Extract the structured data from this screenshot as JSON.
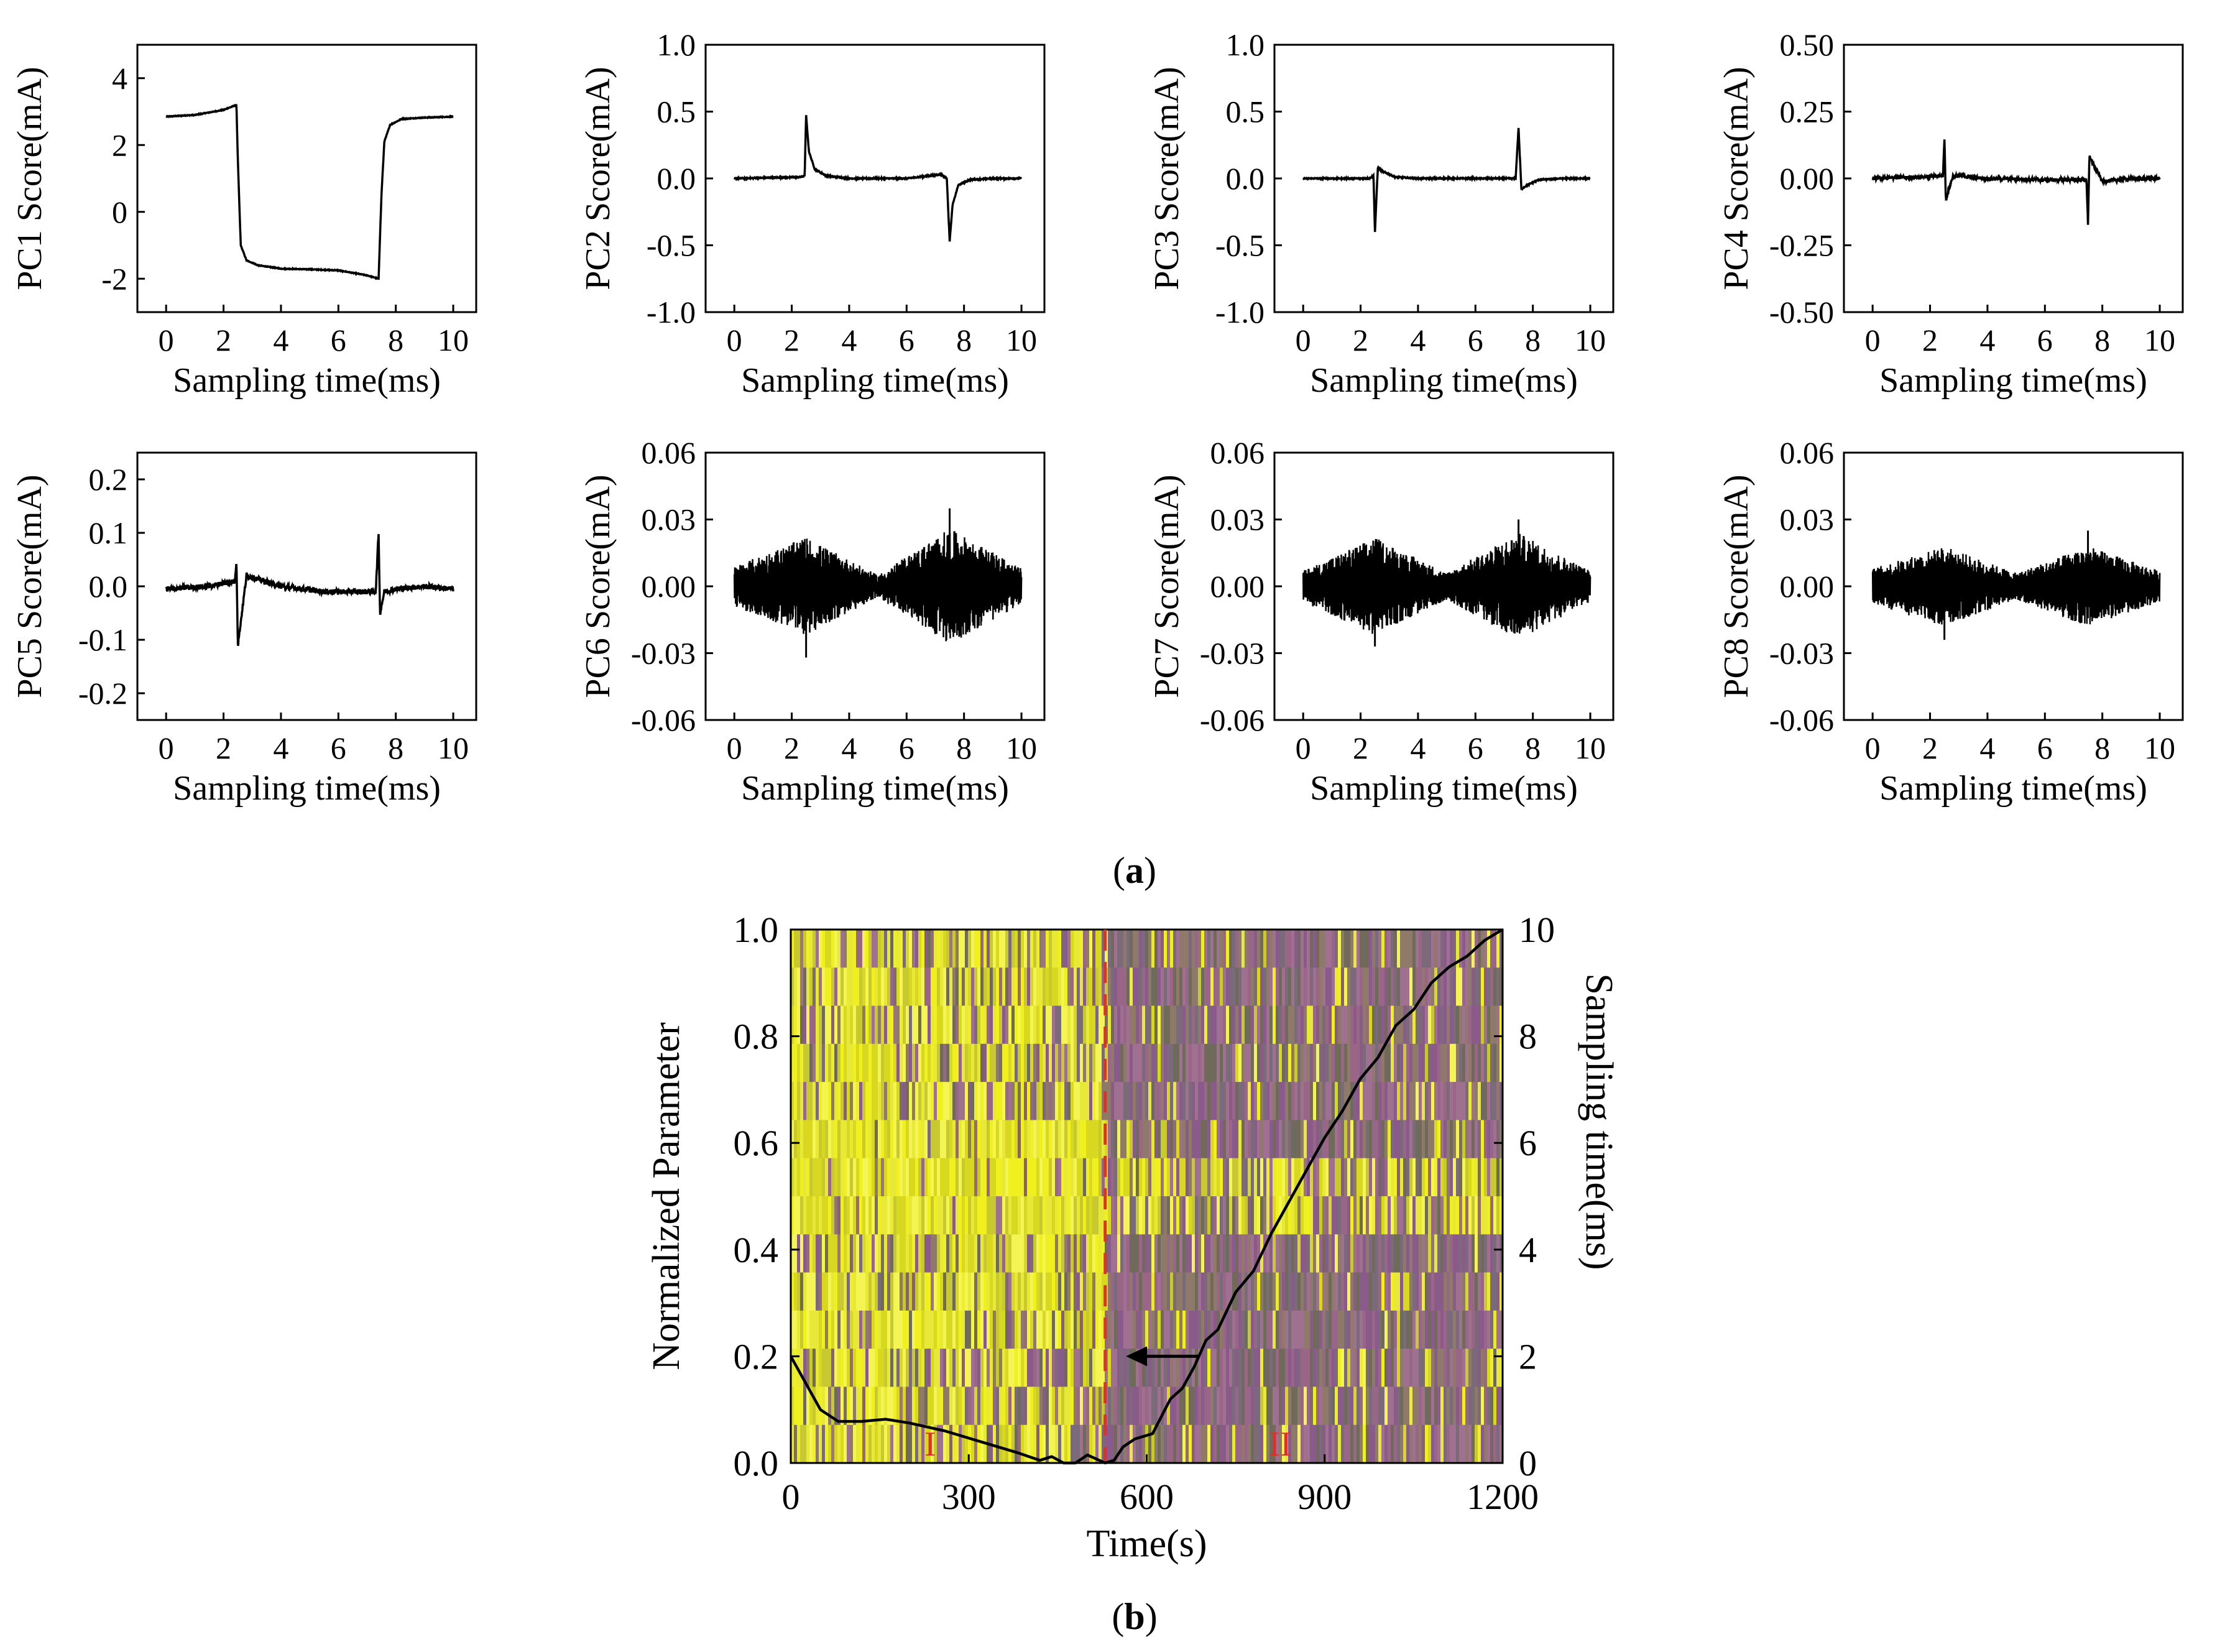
{
  "figure": {
    "label_a": "(a)",
    "label_b": "(b)",
    "label_a_letter": "a",
    "label_b_letter": "b"
  },
  "chart_data": [
    {
      "id": "PC1",
      "type": "line",
      "title": "",
      "xlabel": "Sampling time(ms)",
      "ylabel": "PC1 Score(mA)",
      "xlim": [
        -1,
        10.8
      ],
      "ylim": [
        -3,
        5
      ],
      "xticks": [
        0,
        2,
        4,
        6,
        8,
        10
      ],
      "xtick_labels": [
        "0",
        "2",
        "4",
        "6",
        "8",
        "10"
      ],
      "yticks": [
        -2,
        0,
        2,
        4
      ],
      "ytick_labels": [
        "-2",
        "0",
        "2",
        "4"
      ],
      "series": [
        {
          "name": "PC1",
          "x": [
            0,
            1,
            2,
            2.45,
            2.5,
            2.6,
            2.8,
            3.2,
            4,
            5,
            6,
            7,
            7.4,
            7.5,
            7.6,
            7.8,
            8.2,
            9,
            10
          ],
          "values": [
            2.85,
            2.9,
            3.05,
            3.2,
            1.5,
            -1.0,
            -1.45,
            -1.6,
            -1.7,
            -1.72,
            -1.75,
            -1.9,
            -2.0,
            0.5,
            2.1,
            2.6,
            2.78,
            2.82,
            2.85
          ]
        }
      ],
      "noise": 0.01
    },
    {
      "id": "PC2",
      "type": "line",
      "xlabel": "Sampling time(ms)",
      "ylabel": "PC2 Score(mA)",
      "xlim": [
        -1,
        10.8
      ],
      "ylim": [
        -1.0,
        1.0
      ],
      "xticks": [
        0,
        2,
        4,
        6,
        8,
        10
      ],
      "xtick_labels": [
        "0",
        "2",
        "4",
        "6",
        "8",
        "10"
      ],
      "yticks": [
        -1.0,
        -0.5,
        0.0,
        0.5,
        1.0
      ],
      "ytick_labels": [
        "-1.0",
        "-0.5",
        "0.0",
        "0.5",
        "1.0"
      ],
      "series": [
        {
          "name": "PC2",
          "x": [
            0,
            2.3,
            2.45,
            2.5,
            2.6,
            2.8,
            3.2,
            4,
            6,
            7.2,
            7.4,
            7.5,
            7.6,
            7.8,
            8.2,
            9,
            10
          ],
          "values": [
            0.0,
            0.01,
            0.02,
            0.47,
            0.2,
            0.07,
            0.02,
            0.0,
            0.0,
            0.03,
            0.0,
            -0.47,
            -0.2,
            -0.05,
            -0.01,
            0.0,
            0.0
          ]
        }
      ],
      "noise": 0.004
    },
    {
      "id": "PC3",
      "type": "line",
      "xlabel": "Sampling time(ms)",
      "ylabel": "PC3 Score(mA)",
      "xlim": [
        -1,
        10.8
      ],
      "ylim": [
        -1.0,
        1.0
      ],
      "xticks": [
        0,
        2,
        4,
        6,
        8,
        10
      ],
      "xtick_labels": [
        "0",
        "2",
        "4",
        "6",
        "8",
        "10"
      ],
      "yticks": [
        -1.0,
        -0.5,
        0.0,
        0.5,
        1.0
      ],
      "ytick_labels": [
        "-1.0",
        "-0.5",
        "0.0",
        "0.5",
        "1.0"
      ],
      "series": [
        {
          "name": "PC3",
          "x": [
            0,
            2.3,
            2.45,
            2.5,
            2.6,
            2.8,
            3.2,
            4,
            6,
            7.2,
            7.4,
            7.5,
            7.6,
            7.8,
            8.2,
            9,
            10
          ],
          "values": [
            0.0,
            0.0,
            0.02,
            -0.4,
            0.08,
            0.05,
            0.01,
            0.0,
            0.0,
            0.0,
            0.0,
            0.38,
            -0.08,
            -0.05,
            -0.01,
            0.0,
            0.0
          ]
        }
      ],
      "noise": 0.004
    },
    {
      "id": "PC4",
      "type": "line",
      "xlabel": "Sampling time(ms)",
      "ylabel": "PC4 Score(mA)",
      "xlim": [
        -1,
        10.8
      ],
      "ylim": [
        -0.5,
        0.5
      ],
      "xticks": [
        0,
        2,
        4,
        6,
        8,
        10
      ],
      "xtick_labels": [
        "0",
        "2",
        "4",
        "6",
        "8",
        "10"
      ],
      "yticks": [
        -0.5,
        -0.25,
        0.0,
        0.25,
        0.5
      ],
      "ytick_labels": [
        "-0.50",
        "-0.25",
        "0.00",
        "0.25",
        "0.50"
      ],
      "series": [
        {
          "name": "PC4",
          "x": [
            0,
            1.5,
            2.45,
            2.5,
            2.55,
            2.8,
            4,
            6,
            7.45,
            7.5,
            7.55,
            8,
            9,
            10
          ],
          "values": [
            0.0,
            0.005,
            0.01,
            0.15,
            -0.08,
            0.01,
            0.0,
            -0.005,
            -0.005,
            -0.17,
            0.08,
            -0.01,
            0.0,
            0.0
          ]
        }
      ],
      "noise": 0.006
    },
    {
      "id": "PC5",
      "type": "line",
      "xlabel": "Sampling time(ms)",
      "ylabel": "PC5 Score(mA)",
      "xlim": [
        -1,
        10.8
      ],
      "ylim": [
        -0.25,
        0.25
      ],
      "xticks": [
        0,
        2,
        4,
        6,
        8,
        10
      ],
      "xtick_labels": [
        "0",
        "2",
        "4",
        "6",
        "8",
        "10"
      ],
      "yticks": [
        -0.2,
        -0.1,
        0.0,
        0.1,
        0.2
      ],
      "ytick_labels": [
        "-0.2",
        "-0.1",
        "0.0",
        "0.1",
        "0.2"
      ],
      "series": [
        {
          "name": "PC5",
          "x": [
            0,
            1.5,
            2.4,
            2.45,
            2.5,
            2.8,
            4,
            5.5,
            7.3,
            7.4,
            7.45,
            7.6,
            8,
            9,
            10
          ],
          "values": [
            -0.005,
            0.0,
            0.01,
            0.05,
            -0.11,
            0.02,
            0.0,
            -0.01,
            -0.01,
            0.1,
            -0.05,
            -0.01,
            -0.005,
            0.0,
            -0.005
          ]
        }
      ],
      "noise": 0.005
    },
    {
      "id": "PC6",
      "type": "line",
      "xlabel": "Sampling time(ms)",
      "ylabel": "PC6 Score(mA)",
      "xlim": [
        -1,
        10.8
      ],
      "ylim": [
        -0.06,
        0.06
      ],
      "xticks": [
        0,
        2,
        4,
        6,
        8,
        10
      ],
      "xtick_labels": [
        "0",
        "2",
        "4",
        "6",
        "8",
        "10"
      ],
      "yticks": [
        -0.06,
        -0.03,
        0.0,
        0.03,
        0.06
      ],
      "ytick_labels": [
        "-0.06",
        "-0.03",
        "0.00",
        "0.03",
        "0.06"
      ],
      "envelope": {
        "x": [
          0,
          2.5,
          5,
          7.5,
          10
        ],
        "amplitude": [
          0.009,
          0.022,
          0.005,
          0.026,
          0.008
        ],
        "peak": 0.035,
        "trough": -0.032
      }
    },
    {
      "id": "PC7",
      "type": "line",
      "xlabel": "Sampling time(ms)",
      "ylabel": "PC7 Score(mA)",
      "xlim": [
        -1,
        10.8
      ],
      "ylim": [
        -0.06,
        0.06
      ],
      "xticks": [
        0,
        2,
        4,
        6,
        8,
        10
      ],
      "xtick_labels": [
        "0",
        "2",
        "4",
        "6",
        "8",
        "10"
      ],
      "yticks": [
        -0.06,
        -0.03,
        0.0,
        0.03,
        0.06
      ],
      "ytick_labels": [
        "-0.06",
        "-0.03",
        "0.00",
        "0.03",
        "0.06"
      ],
      "envelope": {
        "x": [
          0,
          2.5,
          5,
          7.5,
          10
        ],
        "amplitude": [
          0.007,
          0.022,
          0.006,
          0.024,
          0.007
        ],
        "peak": 0.03,
        "trough": -0.027
      }
    },
    {
      "id": "PC8",
      "type": "line",
      "xlabel": "Sampling time(ms)",
      "ylabel": "PC8 Score(mA)",
      "xlim": [
        -1,
        10.8
      ],
      "ylim": [
        -0.06,
        0.06
      ],
      "xticks": [
        0,
        2,
        4,
        6,
        8,
        10
      ],
      "xtick_labels": [
        "0",
        "2",
        "4",
        "6",
        "8",
        "10"
      ],
      "yticks": [
        -0.06,
        -0.03,
        0.0,
        0.03,
        0.06
      ],
      "ytick_labels": [
        "-0.06",
        "-0.03",
        "0.00",
        "0.03",
        "0.06"
      ],
      "envelope": {
        "x": [
          0,
          2.5,
          5,
          7.5,
          10
        ],
        "amplitude": [
          0.008,
          0.018,
          0.006,
          0.018,
          0.007
        ],
        "peak": 0.025,
        "trough": -0.024
      }
    },
    {
      "id": "heatmap",
      "type": "heatmap",
      "xlabel": "Time(s)",
      "ylabel": "Normalized Parameter",
      "y2label": "Sampling time(ms)",
      "xlim": [
        0,
        1200
      ],
      "ylim": [
        0,
        1.0
      ],
      "y2lim": [
        0,
        10
      ],
      "xticks": [
        0,
        300,
        600,
        900,
        1200
      ],
      "xtick_labels": [
        "0",
        "300",
        "600",
        "900",
        "1200"
      ],
      "yticks": [
        0.0,
        0.2,
        0.4,
        0.6,
        0.8,
        1.0
      ],
      "ytick_labels": [
        "0.0",
        "0.2",
        "0.4",
        "0.6",
        "0.8",
        "1.0"
      ],
      "y2ticks": [
        0,
        2,
        4,
        6,
        8,
        10
      ],
      "y2tick_labels": [
        "0",
        "2",
        "4",
        "6",
        "8",
        "10"
      ],
      "divider_time": 530,
      "regions": [
        {
          "label": "I",
          "x": 235
        },
        {
          "label": "II",
          "x": 825
        }
      ],
      "arrow": {
        "from_x": 690,
        "to_x": 565,
        "y": 0.2
      },
      "colors": {
        "yellow": "#e6e600",
        "purple": "#8a5a8a",
        "divider": "#e0302a",
        "region_label": "#e0302a"
      },
      "curve": {
        "x": [
          0,
          20,
          50,
          80,
          120,
          160,
          200,
          260,
          320,
          380,
          420,
          440,
          460,
          480,
          500,
          530,
          545,
          560,
          580,
          610,
          640,
          660,
          680,
          700,
          720,
          750,
          780,
          810,
          840,
          870,
          900,
          930,
          960,
          990,
          1020,
          1050,
          1080,
          1110,
          1140,
          1170,
          1200
        ],
        "y": [
          2.0,
          1.6,
          1.0,
          0.78,
          0.78,
          0.82,
          0.75,
          0.6,
          0.4,
          0.2,
          0.05,
          0.12,
          0.0,
          0.0,
          0.15,
          0.0,
          0.05,
          0.3,
          0.45,
          0.55,
          1.2,
          1.4,
          1.8,
          2.3,
          2.5,
          3.2,
          3.6,
          4.3,
          4.9,
          5.5,
          6.1,
          6.6,
          7.2,
          7.6,
          8.2,
          8.5,
          9.0,
          9.3,
          9.5,
          9.8,
          10.0
        ]
      }
    }
  ]
}
